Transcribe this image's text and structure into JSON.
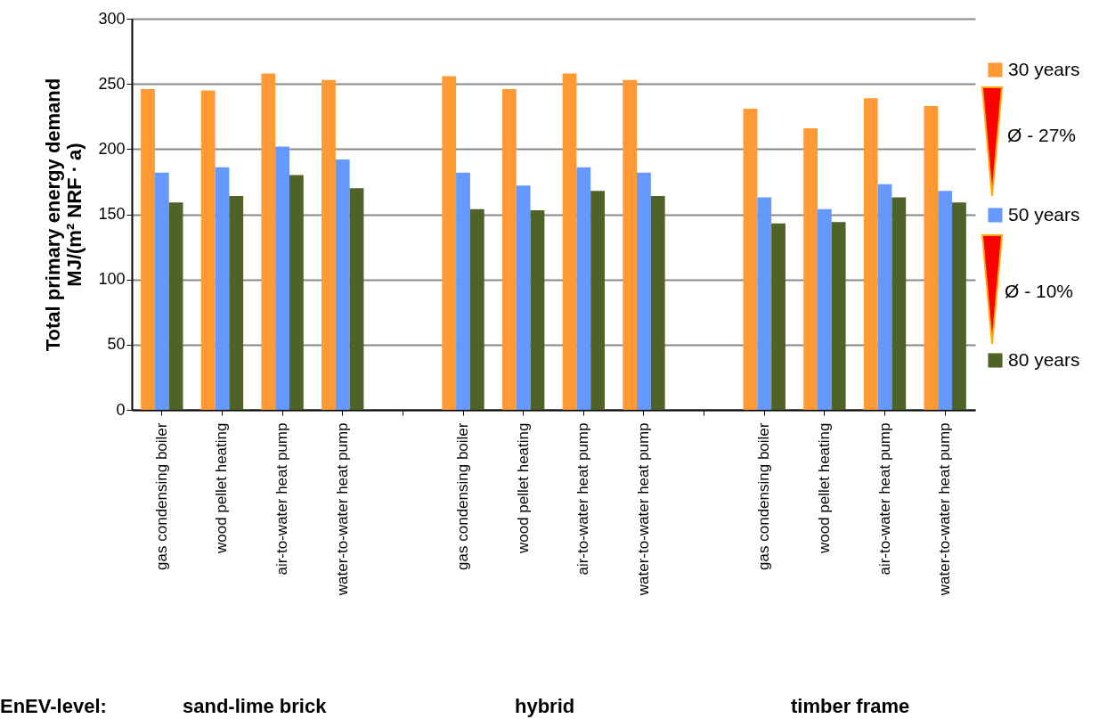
{
  "chart_data": {
    "type": "bar",
    "ylabel": "Total primary energy demand\nMJ/(m² NRF · a)",
    "categories": [
      "gas condensing boiler",
      "wood pellet heating",
      "air-to-water heat pump",
      "water-to-water heat pump",
      null,
      "gas condensing boiler",
      "wood pellet heating",
      "air-to-water heat pump",
      "water-to-water heat pump",
      null,
      "gas condensing boiler",
      "wood pellet heating",
      "air-to-water heat pump",
      "water-to-water heat pump"
    ],
    "series": [
      {
        "name": "30 years",
        "color": "#ff9933",
        "values": [
          246,
          245,
          258,
          253,
          null,
          256,
          246,
          258,
          253,
          null,
          231,
          216,
          239,
          233
        ]
      },
      {
        "name": "50 years",
        "color": "#6699ff",
        "values": [
          182,
          186,
          202,
          192,
          null,
          182,
          172,
          186,
          182,
          null,
          163,
          154,
          173,
          168
        ]
      },
      {
        "name": "80 years",
        "color": "#4f6228",
        "values": [
          159,
          164,
          180,
          170,
          null,
          154,
          153,
          168,
          164,
          null,
          143,
          144,
          163,
          159
        ]
      }
    ],
    "ylim": [
      0,
      300
    ],
    "yticks": [
      0,
      50,
      100,
      150,
      200,
      250,
      300
    ],
    "grid": "y",
    "legend": "right",
    "annotations": [
      "Ø - 27%",
      "Ø - 10%",
      "EnEV-level:",
      "sand-lime brick",
      "hybrid",
      "timber frame"
    ]
  }
}
